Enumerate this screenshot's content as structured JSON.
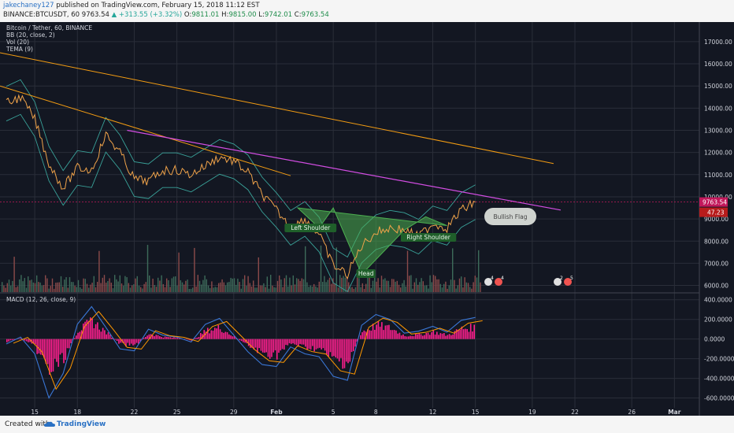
{
  "header": {
    "user": "jakechaney127",
    "published": " published on TradingView.com, February 15, 2018 11:12 EST",
    "symbol": "BINANCE:BTCUSDT, 60",
    "last": "9763.54",
    "change": "▲ +313.55 (+3.32%)",
    "o_label": "O:",
    "o_val": "9811.01",
    "h_label": "H:",
    "h_val": "9815.00",
    "l_label": "L:",
    "l_val": "9742.01",
    "c_label": "C:",
    "c_val": "9763.54"
  },
  "legend": {
    "title": "Bitcoin / Tether, 60, BINANCE",
    "bb": "BB (20, close, 2)",
    "vol": "Vol (20)",
    "tema": "TEMA (9)",
    "macd": "MACD (12, 26, close, 9)"
  },
  "footer": {
    "created": "Created with",
    "brand": "TradingView"
  },
  "colors": {
    "bg": "#131722",
    "price": "#f0a34a",
    "bb": "#3aa39a",
    "trend_orange": "#f39c12",
    "trend_magenta": "#d24de2",
    "pattern": "#4caf50",
    "macd_line": "#3a77d6",
    "signal_line": "#ff9800",
    "hist": "#ff1f8e",
    "up": "#26a69a",
    "down": "#ef5350"
  },
  "chart_data": {
    "type": "line",
    "title": "Bitcoin / Tether, 60, BINANCE",
    "xlabel": "",
    "ylabel": "",
    "x_ticks": [
      "15",
      "18",
      "22",
      "25",
      "29",
      "Feb",
      "5",
      "8",
      "12",
      "15",
      "19",
      "22",
      "26",
      "Mar"
    ],
    "y_ticks": [
      17000,
      16000,
      15000,
      14000,
      13000,
      12000,
      11000,
      10000,
      9000,
      8000,
      7000,
      6000
    ],
    "ylim": [
      5700,
      17600
    ],
    "series": [
      {
        "name": "",
        "x": [
          "Jan 13",
          "Jan 14",
          "Jan 15",
          "Jan 16",
          "Jan 17",
          "Jan 18",
          "Jan 19",
          "Jan 20",
          "Jan 21",
          "Jan 22",
          "Jan 23",
          "Jan 24",
          "Jan 25",
          "Jan 26",
          "Jan 27",
          "Jan 28",
          "Jan 29",
          "Jan 30",
          "Jan 31",
          "Feb 1",
          "Feb 2",
          "Feb 3",
          "Feb 4",
          "Feb 5",
          "Feb 6",
          "Feb 7",
          "Feb 8",
          "Feb 9",
          "Feb 10",
          "Feb 11",
          "Feb 12",
          "Feb 13",
          "Feb 14",
          "Feb 15"
        ],
        "values": [
          14200,
          14500,
          13500,
          11500,
          10400,
          11300,
          11200,
          12800,
          12000,
          10800,
          10700,
          11200,
          11200,
          11000,
          11400,
          11800,
          11600,
          11100,
          10100,
          9400,
          8600,
          9000,
          8300,
          6900,
          6500,
          7800,
          8400,
          8600,
          8500,
          8200,
          8800,
          8600,
          9400,
          9760
        ]
      }
    ],
    "last_price": 9763.54,
    "last_price_label": "9763.54",
    "tema_label": "47.23",
    "pattern_labels": {
      "left": "Left Shoulder",
      "head": "Head",
      "right": "Right Shoulder",
      "flag": "Bullish Flag"
    },
    "macd": {
      "name": "MACD (12, 26, close, 9)",
      "y_ticks": [
        400,
        200,
        0,
        -200,
        -400,
        -600
      ],
      "y_tick_labels": [
        "400.0000",
        "200.0000",
        "0.0000",
        "-200.0000",
        "-400.0000",
        "-600.0000"
      ],
      "ylim": [
        -700,
        430
      ],
      "values": [
        -50,
        20,
        -150,
        -600,
        -350,
        150,
        330,
        120,
        -100,
        -120,
        100,
        40,
        20,
        -30,
        150,
        210,
        40,
        -130,
        -260,
        -280,
        -80,
        -150,
        -180,
        -380,
        -420,
        140,
        250,
        200,
        60,
        80,
        130,
        70,
        190,
        220
      ]
    },
    "event_badges": [
      "4",
      "4",
      "2",
      "5"
    ],
    "grid": true
  }
}
